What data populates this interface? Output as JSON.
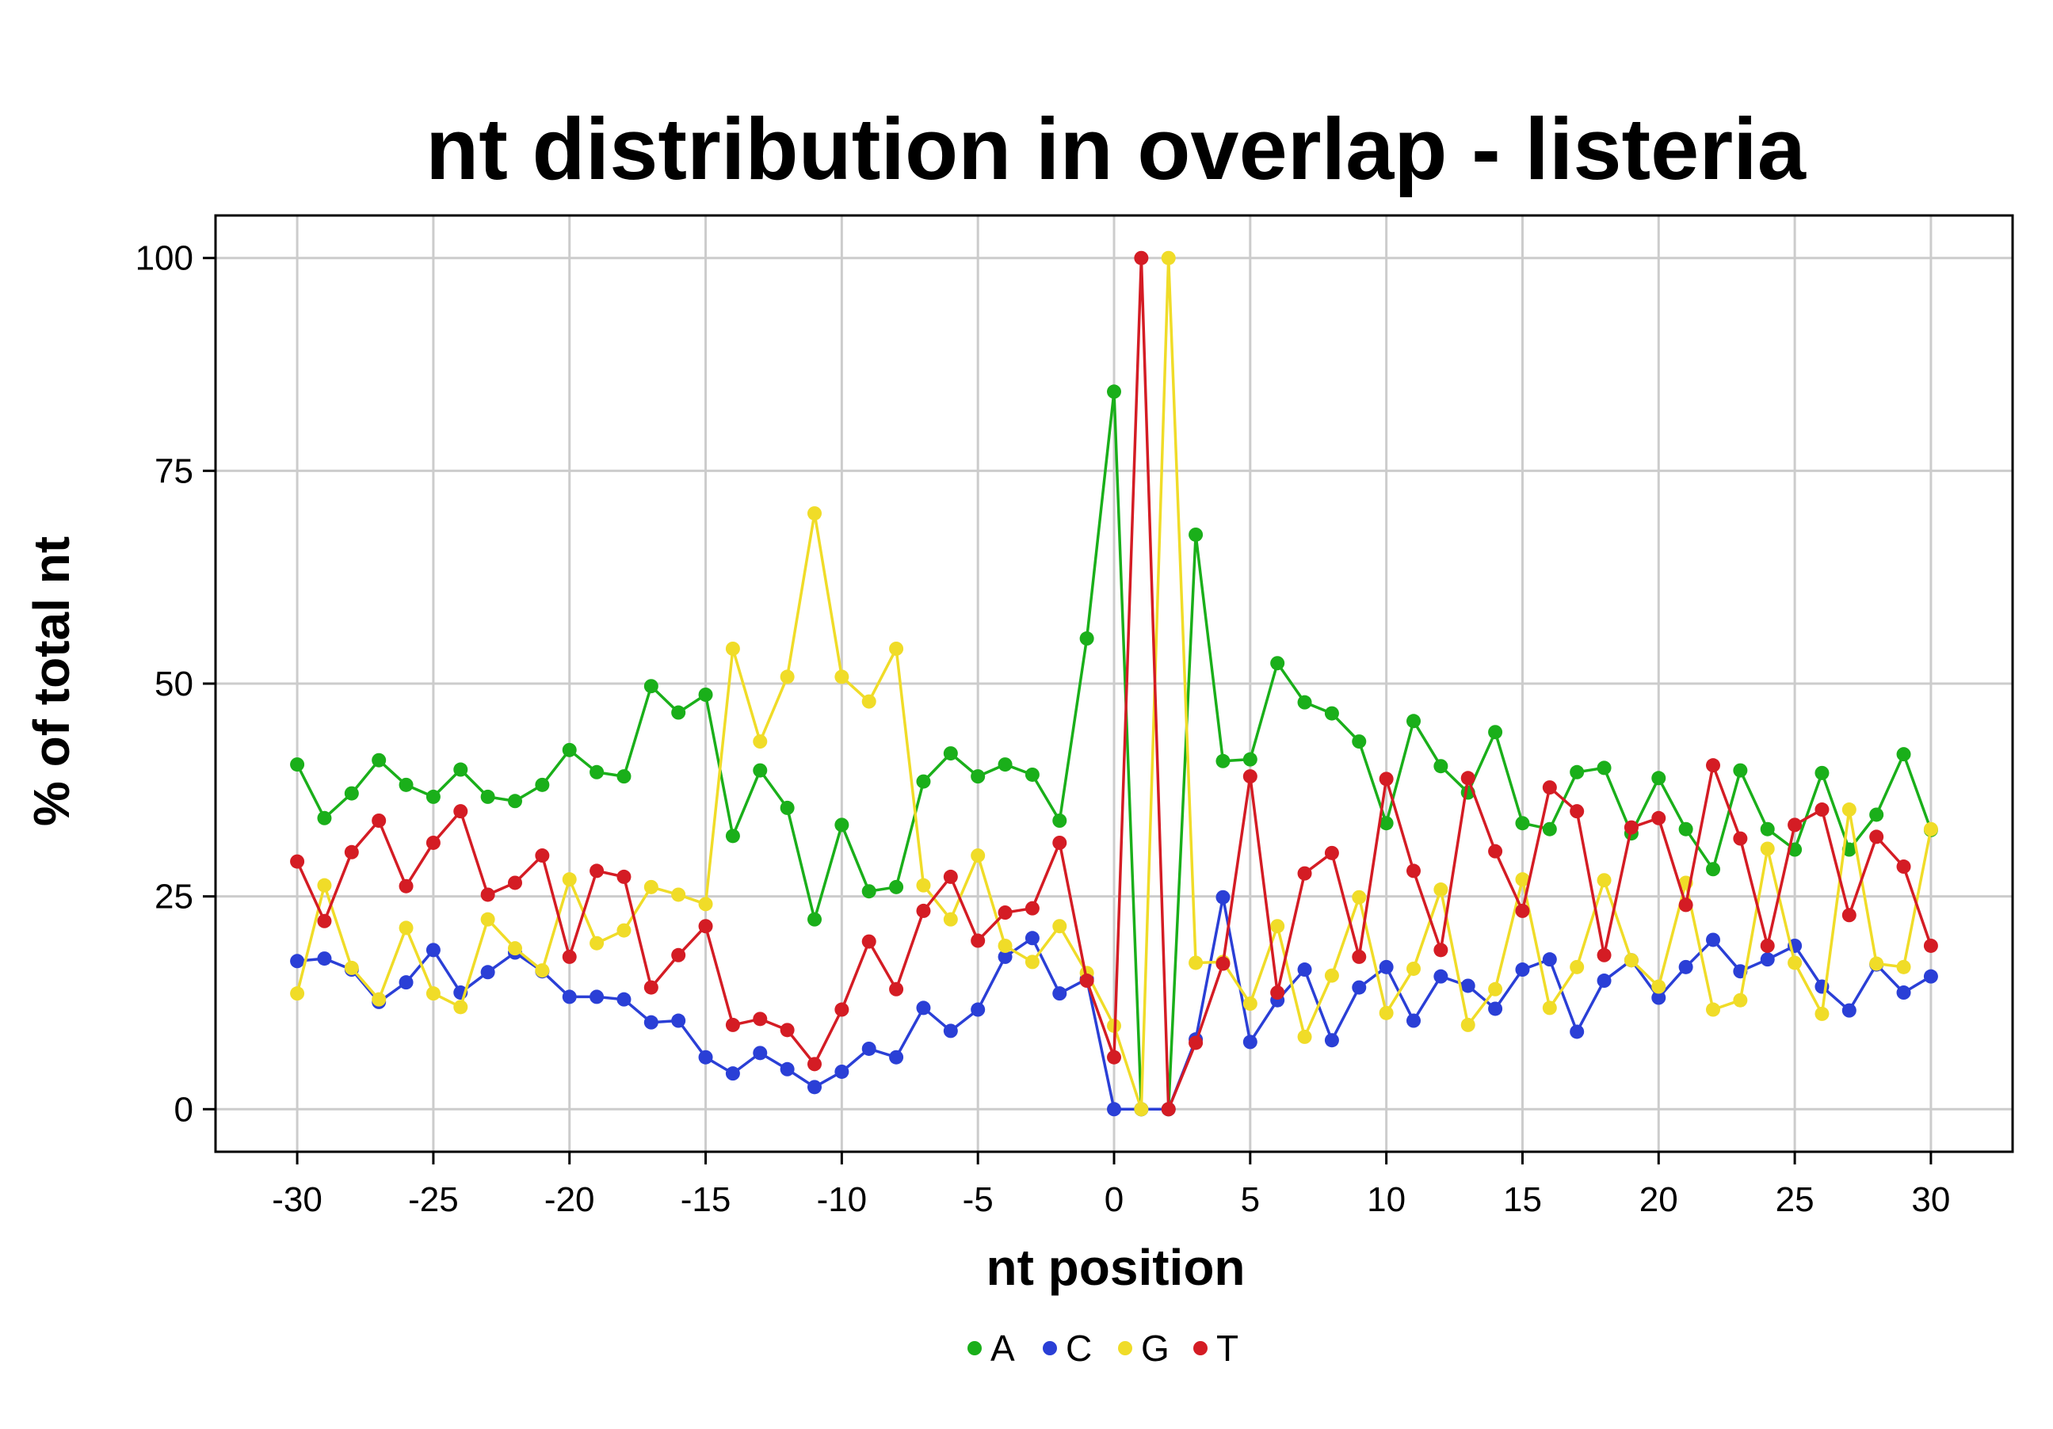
{
  "chart_data": {
    "type": "line",
    "title": "nt distribution in overlap - listeria",
    "xlabel": "nt position",
    "ylabel": "% of total nt",
    "xlim": [
      -33,
      33
    ],
    "ylim": [
      -5,
      105
    ],
    "xticks": [
      -30,
      -25,
      -20,
      -15,
      -10,
      -5,
      0,
      5,
      10,
      15,
      20,
      25,
      30
    ],
    "xtick_labels": [
      "-30",
      "-25",
      "-20",
      "-15",
      "-10",
      "-5",
      "0",
      "5",
      "10",
      "15",
      "20",
      "25",
      "30"
    ],
    "yticks": [
      0,
      25,
      50,
      75,
      100
    ],
    "ytick_labels": [
      "0",
      "25",
      "50",
      "75",
      "100"
    ],
    "grid": true,
    "legend_position": "bottom",
    "x": [
      -30,
      -29,
      -28,
      -27,
      -26,
      -25,
      -24,
      -23,
      -22,
      -21,
      -20,
      -19,
      -18,
      -17,
      -16,
      -15,
      -14,
      -13,
      -12,
      -11,
      -10,
      -9,
      -8,
      -7,
      -6,
      -5,
      -4,
      -3,
      -2,
      -1,
      0,
      1,
      2,
      3,
      4,
      5,
      6,
      7,
      8,
      9,
      10,
      11,
      12,
      13,
      14,
      15,
      16,
      17,
      18,
      19,
      20,
      21,
      22,
      23,
      24,
      25,
      26,
      27,
      28,
      29,
      30
    ],
    "series": [
      {
        "name": "A",
        "color": "#1aaf1a",
        "values": [
          40.5,
          34.2,
          37.1,
          41.0,
          38.1,
          36.7,
          39.9,
          36.7,
          36.2,
          38.1,
          42.2,
          39.6,
          39.1,
          49.7,
          46.6,
          48.7,
          32.1,
          39.8,
          35.4,
          22.3,
          33.4,
          25.6,
          26.1,
          38.5,
          41.8,
          39.1,
          40.5,
          39.3,
          33.9,
          55.3,
          84.3,
          0,
          0,
          67.5,
          40.9,
          41.1,
          52.4,
          47.8,
          46.5,
          43.2,
          33.6,
          45.6,
          40.3,
          37.2,
          44.3,
          33.6,
          32.9,
          39.6,
          40.1,
          32.4,
          38.9,
          32.9,
          28.2,
          39.8,
          32.9,
          30.5,
          39.5,
          30.5,
          34.6,
          41.7,
          32.8
        ]
      },
      {
        "name": "C",
        "color": "#2a3fd6",
        "values": [
          17.4,
          17.7,
          16.4,
          12.6,
          14.9,
          18.7,
          13.7,
          16.1,
          18.4,
          16.2,
          13.2,
          13.2,
          12.9,
          10.2,
          10.4,
          6.1,
          4.2,
          6.6,
          4.7,
          2.6,
          4.4,
          7.1,
          6.1,
          11.9,
          9.2,
          11.7,
          17.9,
          20.1,
          13.6,
          15.3,
          0,
          0,
          0,
          8.2,
          24.9,
          7.9,
          12.8,
          16.4,
          8.1,
          14.3,
          16.7,
          10.4,
          15.6,
          14.5,
          11.8,
          16.4,
          17.6,
          9.1,
          15.1,
          17.5,
          13.1,
          16.7,
          19.9,
          16.2,
          17.6,
          19.2,
          14.4,
          11.6,
          17.0,
          13.7,
          15.6
        ]
      },
      {
        "name": "G",
        "color": "#f0dc28",
        "values": [
          13.6,
          26.3,
          16.6,
          12.9,
          21.3,
          13.6,
          12.0,
          22.3,
          18.9,
          16.3,
          27.0,
          19.5,
          21.0,
          26.1,
          25.2,
          24.1,
          54.1,
          43.2,
          50.8,
          70.0,
          50.8,
          47.9,
          54.1,
          26.3,
          22.3,
          29.8,
          19.2,
          17.3,
          21.5,
          16.0,
          9.8,
          0,
          100,
          17.2,
          17.3,
          12.4,
          21.5,
          8.5,
          15.7,
          24.9,
          11.3,
          16.5,
          25.8,
          9.9,
          14.1,
          27.0,
          11.9,
          16.7,
          26.9,
          17.5,
          14.4,
          26.6,
          11.7,
          12.8,
          30.6,
          17.2,
          11.2,
          35.2,
          17.1,
          16.7,
          32.9
        ]
      },
      {
        "name": "T",
        "color": "#d41c24",
        "values": [
          29.1,
          22.1,
          30.2,
          33.9,
          26.2,
          31.3,
          35.0,
          25.2,
          26.6,
          29.8,
          17.9,
          28.0,
          27.3,
          14.3,
          18.1,
          21.5,
          9.9,
          10.6,
          9.3,
          5.3,
          11.7,
          19.7,
          14.1,
          23.3,
          27.3,
          19.8,
          23.1,
          23.6,
          31.3,
          15.1,
          6.1,
          100,
          0,
          7.8,
          17.1,
          39.1,
          13.7,
          27.7,
          30.1,
          17.9,
          38.8,
          28.0,
          18.7,
          38.9,
          30.3,
          23.3,
          37.8,
          35.0,
          18.1,
          33.1,
          34.2,
          24.0,
          40.4,
          31.8,
          19.2,
          33.4,
          35.2,
          22.8,
          32.0,
          28.5,
          19.2
        ]
      }
    ]
  }
}
